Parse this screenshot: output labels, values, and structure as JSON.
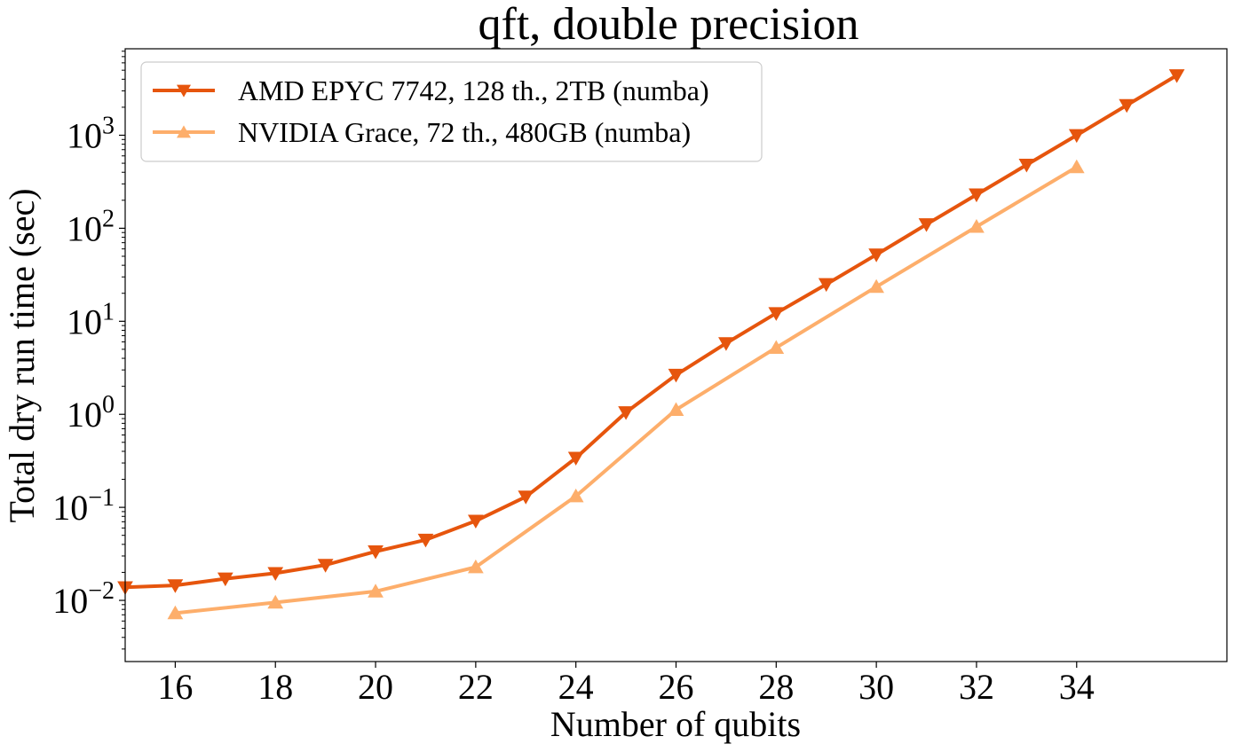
{
  "chart_data": {
    "type": "line",
    "title": "qft, double precision",
    "xlabel": "Number of qubits",
    "ylabel": "Total dry run time (sec)",
    "xlim": [
      15,
      37
    ],
    "ylim": [
      0.0022,
      8500
    ],
    "yscale": "log",
    "x_ticks": [
      16,
      18,
      20,
      22,
      24,
      26,
      28,
      30,
      32,
      34
    ],
    "y_ticks": [
      {
        "value": 0.01,
        "base": "10",
        "exp": "−2"
      },
      {
        "value": 0.1,
        "base": "10",
        "exp": "−1"
      },
      {
        "value": 1,
        "base": "10",
        "exp": "0"
      },
      {
        "value": 10,
        "base": "10",
        "exp": "1"
      },
      {
        "value": 100,
        "base": "10",
        "exp": "2"
      },
      {
        "value": 1000,
        "base": "10",
        "exp": "3"
      }
    ],
    "grid": false,
    "legend_position": "top-left",
    "series": [
      {
        "name": "AMD EPYC 7742, 128 th., 2TB (numba)",
        "color": "#e6550d",
        "marker": "triangle-down",
        "x": [
          15,
          16,
          17,
          18,
          19,
          20,
          21,
          22,
          23,
          24,
          25,
          26,
          27,
          28,
          29,
          30,
          31,
          32,
          33,
          34,
          35,
          36
        ],
        "y": [
          0.0138,
          0.0145,
          0.0171,
          0.0196,
          0.024,
          0.0335,
          0.0447,
          0.0715,
          0.13,
          0.34,
          1.05,
          2.65,
          5.8,
          12.2,
          25.0,
          52.0,
          110.0,
          230.0,
          480.0,
          1000.0,
          2100.0,
          4400.0
        ]
      },
      {
        "name": "NVIDIA Grace, 72 th., 480GB (numba)",
        "color": "#fdae6b",
        "marker": "triangle-up",
        "x": [
          16,
          18,
          20,
          22,
          24,
          26,
          28,
          30,
          32,
          34
        ],
        "y": [
          0.0073,
          0.0095,
          0.0125,
          0.0228,
          0.132,
          1.12,
          5.2,
          23.5,
          104.0,
          455.0
        ]
      }
    ]
  }
}
